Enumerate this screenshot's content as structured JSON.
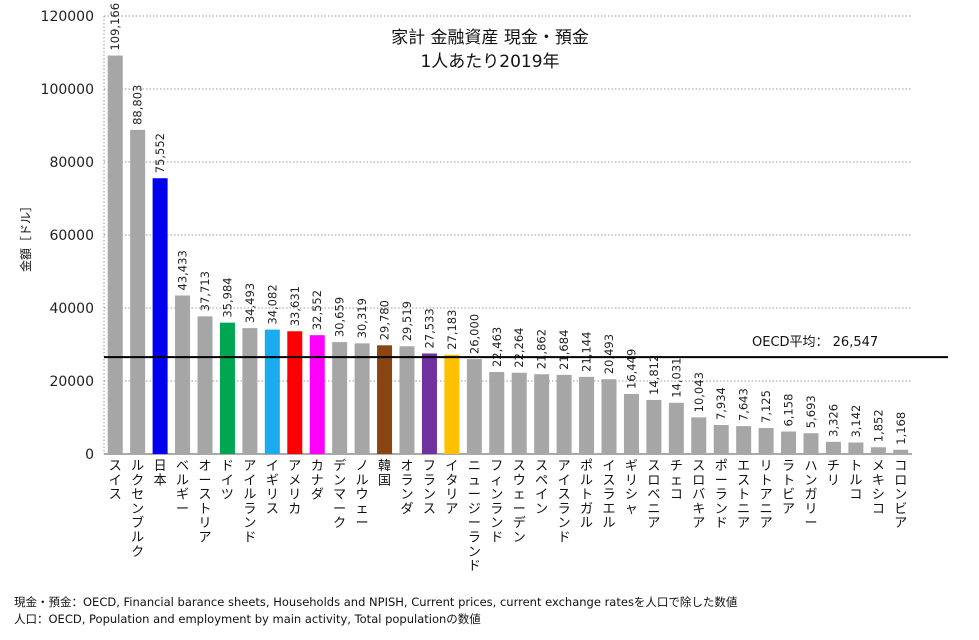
{
  "chart_data": {
    "type": "bar",
    "title": [
      "家計 金融資産 現金・預金",
      "1人あたり2019年"
    ],
    "ylabel": "金額［ドル］",
    "xlabel": "",
    "ylim": [
      0,
      120000
    ],
    "yticks": [
      "0",
      "20000",
      "40000",
      "60000",
      "80000",
      "100000",
      "120000"
    ],
    "grid": "horizontal-dotted",
    "categories": [
      "スイス",
      "ルクセンブルク",
      "日本",
      "ベルギー",
      "オーストリア",
      "ドイツ",
      "アイルランド",
      "イギリス",
      "アメリカ",
      "カナダ",
      "デンマーク",
      "ノルウェー",
      "韓国",
      "オランダ",
      "フランス",
      "イタリア",
      "ニュージーランド",
      "フィンランド",
      "スウェーデン",
      "スペイン",
      "アイスランド",
      "ポルトガル",
      "イスラエル",
      "ギリシャ",
      "スロベニア",
      "チェコ",
      "スロバキア",
      "ポーランド",
      "エストニア",
      "リトアニア",
      "ラトビア",
      "ハンガリー",
      "チリ",
      "トルコ",
      "メキシコ",
      "コロンビア"
    ],
    "values": [
      109166,
      88803,
      75552,
      43433,
      37713,
      35984,
      34493,
      34082,
      33631,
      32552,
      30659,
      30319,
      29780,
      29519,
      27533,
      27183,
      26000,
      22463,
      22264,
      21862,
      21684,
      21144,
      20493,
      16449,
      14812,
      14031,
      10043,
      7934,
      7643,
      7125,
      6158,
      5693,
      3326,
      3142,
      1852,
      1168
    ],
    "value_labels": [
      "109,166",
      "88,803",
      "75,552",
      "43,433",
      "37,713",
      "35,984",
      "34,493",
      "34,082",
      "33,631",
      "32,552",
      "30,659",
      "30,319",
      "29,780",
      "29,519",
      "27,533",
      "27,183",
      "26,000",
      "22,463",
      "22,264",
      "21,862",
      "21,684",
      "21,144",
      "20,493",
      "16,449",
      "14,812",
      "14,031",
      "10,043",
      "7,934",
      "7,643",
      "7,125",
      "6,158",
      "5,693",
      "3,326",
      "3,142",
      "1,852",
      "1,168"
    ],
    "colors": [
      "#a6a6a6",
      "#a6a6a6",
      "#0000ee",
      "#a6a6a6",
      "#a6a6a6",
      "#00a651",
      "#a6a6a6",
      "#1aabf0",
      "#ff0000",
      "#ff00ff",
      "#a6a6a6",
      "#a6a6a6",
      "#8b4513",
      "#a6a6a6",
      "#7030a0",
      "#ffc000",
      "#a6a6a6",
      "#a6a6a6",
      "#a6a6a6",
      "#a6a6a6",
      "#a6a6a6",
      "#a6a6a6",
      "#a6a6a6",
      "#a6a6a6",
      "#a6a6a6",
      "#a6a6a6",
      "#a6a6a6",
      "#a6a6a6",
      "#a6a6a6",
      "#a6a6a6",
      "#a6a6a6",
      "#a6a6a6",
      "#a6a6a6",
      "#a6a6a6",
      "#a6a6a6",
      "#a6a6a6"
    ],
    "reference_line": {
      "value": 26547,
      "label": "OECD平均：  26,547",
      "color": "#000000"
    }
  },
  "footnotes": [
    "現金・預金：OECD, Financial barance sheets, Households and NPISH, Current prices, current exchange ratesを人口で除した数値",
    "人口：OECD, Population and employment by main activity, Total populationの数値"
  ]
}
